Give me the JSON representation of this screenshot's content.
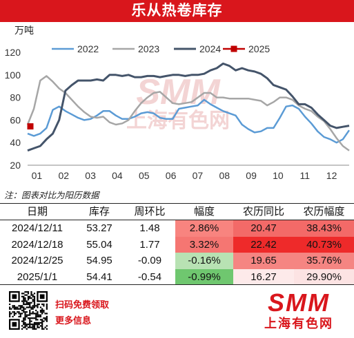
{
  "header": {
    "title": "乐从热卷库存"
  },
  "colors": {
    "brand_red": "#d9161c",
    "s2022": "#5b9bd5",
    "s2023": "#a6a6a6",
    "s2024": "#44546a",
    "s2025": "#c00000",
    "watermark": "#f3d4d4"
  },
  "chart_data": {
    "type": "line",
    "ylabel": "万吨",
    "ylim": [
      20,
      120
    ],
    "yticks": [
      20,
      40,
      60,
      80,
      100,
      120
    ],
    "xticks": [
      "01",
      "02",
      "03",
      "04",
      "05",
      "06",
      "07",
      "08",
      "09",
      "10",
      "11",
      "12"
    ],
    "x_week_range": [
      1,
      52
    ],
    "grid": false,
    "legend_position": "top",
    "watermark": {
      "brand": "SMM",
      "cn": "上海有色网"
    },
    "series": [
      {
        "name": "2022",
        "color": "#5b9bd5",
        "values": [
          48,
          46,
          48,
          53,
          69,
          72,
          68,
          65,
          62,
          60,
          61,
          64,
          68,
          68,
          64,
          61,
          61,
          63,
          66,
          67,
          66,
          62,
          61,
          61,
          70,
          71,
          72,
          73,
          78,
          74,
          71,
          68,
          66,
          64,
          56,
          52,
          49,
          50,
          53,
          53,
          62,
          72,
          73,
          70,
          63,
          57,
          50,
          45,
          43,
          40,
          43,
          51
        ]
      },
      {
        "name": "2023",
        "color": "#a6a6a6",
        "values": [
          56,
          70,
          95,
          99,
          94,
          88,
          84,
          78,
          72,
          67,
          63,
          62,
          63,
          58,
          56,
          57,
          60,
          68,
          75,
          80,
          84,
          85,
          80,
          75,
          74,
          75,
          76,
          80,
          84,
          84,
          80,
          80,
          79,
          79,
          79,
          79,
          78,
          77,
          73,
          76,
          80,
          80,
          78,
          73,
          70,
          68,
          63,
          59,
          52,
          44,
          37,
          33
        ]
      },
      {
        "name": "2024",
        "color": "#44546a",
        "values": [
          33,
          35,
          37,
          43,
          48,
          60,
          86,
          91,
          95,
          95,
          95,
          96,
          95,
          100,
          100,
          99,
          100,
          98,
          98,
          99,
          99,
          98,
          99,
          100,
          100,
          99,
          100,
          100,
          101,
          104,
          106,
          110,
          108,
          104,
          106,
          104,
          103,
          101,
          97,
          91,
          89,
          87,
          81,
          74,
          74,
          71,
          65,
          60,
          55,
          53,
          54,
          55
        ]
      },
      {
        "name": "2025",
        "color": "#c00000",
        "marker": "square",
        "values": [
          54.41
        ]
      }
    ]
  },
  "note": "注：图表对比为阳历数据",
  "table": {
    "headers": [
      "日期",
      "库存",
      "周环比",
      "幅度",
      "农历同比",
      "农历幅度"
    ],
    "rows": [
      [
        "2024/12/11",
        "53.27",
        "1.48",
        "2.86%",
        "20.47",
        "38.43%"
      ],
      [
        "2024/12/18",
        "55.04",
        "1.77",
        "3.32%",
        "22.42",
        "40.73%"
      ],
      [
        "2024/12/25",
        "54.95",
        "-0.09",
        "-0.16%",
        "19.65",
        "35.76%"
      ],
      [
        "2025/1/1",
        "54.41",
        "-0.54",
        "-0.99%",
        "16.27",
        "29.90%"
      ]
    ],
    "heat": {
      "amp": [
        "#f8847f",
        "#f57672",
        "#b8e2b3",
        "#6fc76f"
      ],
      "lunar_yoy": [
        "#f36a68",
        "#ee2a2a",
        "#f58582",
        "#fdeaea"
      ],
      "lunar_amp": [
        "#f36a68",
        "#ee2a2a",
        "#f58582",
        "#fce3e3"
      ]
    }
  },
  "footer": {
    "scan": "扫码免费领取",
    "more": "更多信息",
    "logo_mark": "SMM",
    "logo_cn": "上海有色网"
  }
}
